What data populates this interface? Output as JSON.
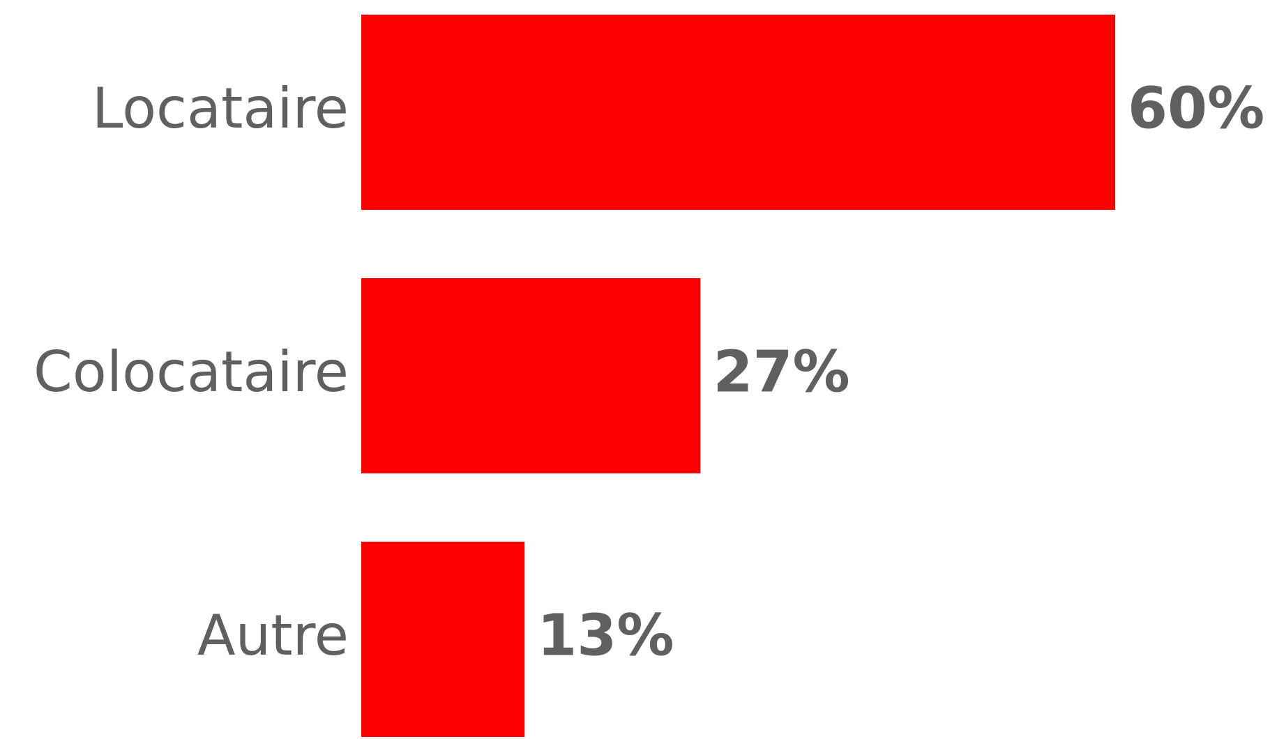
{
  "chart_data": {
    "type": "bar",
    "orientation": "horizontal",
    "categories": [
      "Locataire",
      "Colocataire",
      "Autre"
    ],
    "values": [
      60,
      27,
      13
    ],
    "value_labels": [
      "60%",
      "27%",
      "13%"
    ],
    "color": "#ff0000"
  }
}
